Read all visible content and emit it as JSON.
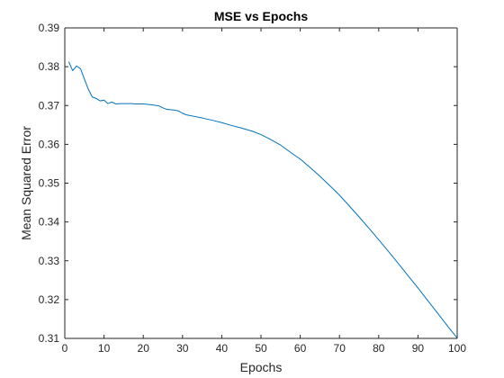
{
  "chart_data": {
    "type": "line",
    "title": "MSE vs Epochs",
    "xlabel": "Epochs",
    "ylabel": "Mean Squared Error",
    "xlim": [
      0,
      100
    ],
    "ylim": [
      0.31,
      0.39
    ],
    "xticks": [
      0,
      10,
      20,
      30,
      40,
      50,
      60,
      70,
      80,
      90,
      100
    ],
    "yticks": [
      0.31,
      0.32,
      0.33,
      0.34,
      0.35,
      0.36,
      0.37,
      0.38,
      0.39
    ],
    "xtick_labels": [
      "0",
      "10",
      "20",
      "30",
      "40",
      "50",
      "60",
      "70",
      "80",
      "90",
      "100"
    ],
    "ytick_labels": [
      "0.31",
      "0.32",
      "0.33",
      "0.34",
      "0.35",
      "0.36",
      "0.37",
      "0.38",
      "0.39"
    ],
    "grid": false,
    "series": [
      {
        "color": "#0072bd",
        "x": [
          1,
          2,
          3,
          4,
          5,
          6,
          7,
          8,
          9,
          10,
          11,
          12,
          13,
          14,
          15,
          16,
          17,
          18,
          19,
          20,
          22,
          24,
          25,
          26,
          28,
          29,
          30,
          31,
          33,
          35,
          38,
          40,
          42,
          45,
          48,
          50,
          52,
          55,
          58,
          60,
          62,
          65,
          68,
          70,
          72,
          75,
          78,
          80,
          82,
          85,
          88,
          90,
          92,
          95,
          98,
          100
        ],
        "y": [
          0.3813,
          0.379,
          0.3802,
          0.3795,
          0.3768,
          0.3742,
          0.3722,
          0.3718,
          0.3712,
          0.3714,
          0.3705,
          0.3709,
          0.3704,
          0.3705,
          0.3705,
          0.3705,
          0.3705,
          0.3704,
          0.3704,
          0.3704,
          0.3702,
          0.3699,
          0.3694,
          0.369,
          0.3688,
          0.3686,
          0.368,
          0.3676,
          0.3672,
          0.3668,
          0.3661,
          0.3656,
          0.365,
          0.3642,
          0.3633,
          0.3625,
          0.3615,
          0.3598,
          0.3576,
          0.3562,
          0.3545,
          0.3518,
          0.3489,
          0.3469,
          0.3447,
          0.3413,
          0.3378,
          0.3354,
          0.333,
          0.3293,
          0.3255,
          0.323,
          0.3204,
          0.3165,
          0.3126,
          0.3101
        ]
      }
    ]
  }
}
